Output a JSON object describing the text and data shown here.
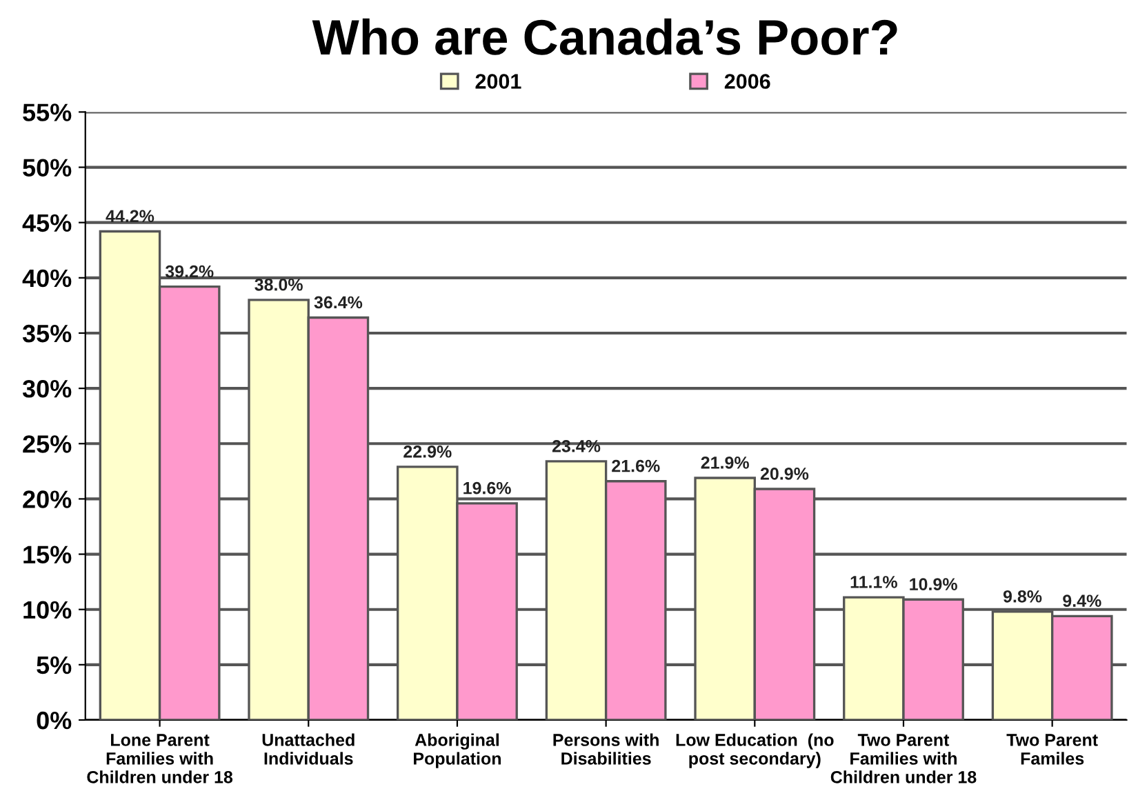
{
  "chart_data": {
    "type": "bar",
    "title": "Who are Canada’s Poor?",
    "categories": [
      "Lone Parent\nFamilies with\nChildren under 18",
      "Unattached\nIndividuals",
      "Aboriginal\nPopulation",
      "Persons with\nDisabilities",
      "Low Education  (no\npost secondary)",
      "Two Parent\nFamilies with\nChildren under 18",
      "Two Parent\nFamiles"
    ],
    "series": [
      {
        "name": "2001",
        "color": "#ffffcc",
        "values": [
          44.2,
          38.0,
          22.9,
          23.4,
          21.9,
          11.1,
          9.8
        ],
        "value_labels": [
          "44.2%",
          "38.0%",
          "22.9%",
          "23.4%",
          "21.9%",
          "11.1%",
          "9.8%"
        ]
      },
      {
        "name": "2006",
        "color": "#ff99cc",
        "values": [
          39.2,
          36.4,
          19.6,
          21.6,
          20.9,
          10.9,
          9.4
        ],
        "value_labels": [
          "39.2%",
          "36.4%",
          "19.6%",
          "21.6%",
          "20.9%",
          "10.9%",
          "9.4%"
        ]
      }
    ],
    "ylim": [
      0,
      55
    ],
    "yticks": [
      {
        "value": 0,
        "label": "0%"
      },
      {
        "value": 5,
        "label": "5%"
      },
      {
        "value": 10,
        "label": "10%"
      },
      {
        "value": 15,
        "label": "15%"
      },
      {
        "value": 20,
        "label": "20%"
      },
      {
        "value": 25,
        "label": "25%"
      },
      {
        "value": 30,
        "label": "30%"
      },
      {
        "value": 35,
        "label": "35%"
      },
      {
        "value": 40,
        "label": "40%"
      },
      {
        "value": 45,
        "label": "45%"
      },
      {
        "value": 50,
        "label": "50%"
      },
      {
        "value": 55,
        "label": "55%"
      }
    ],
    "grid": "y",
    "legend": "top"
  }
}
